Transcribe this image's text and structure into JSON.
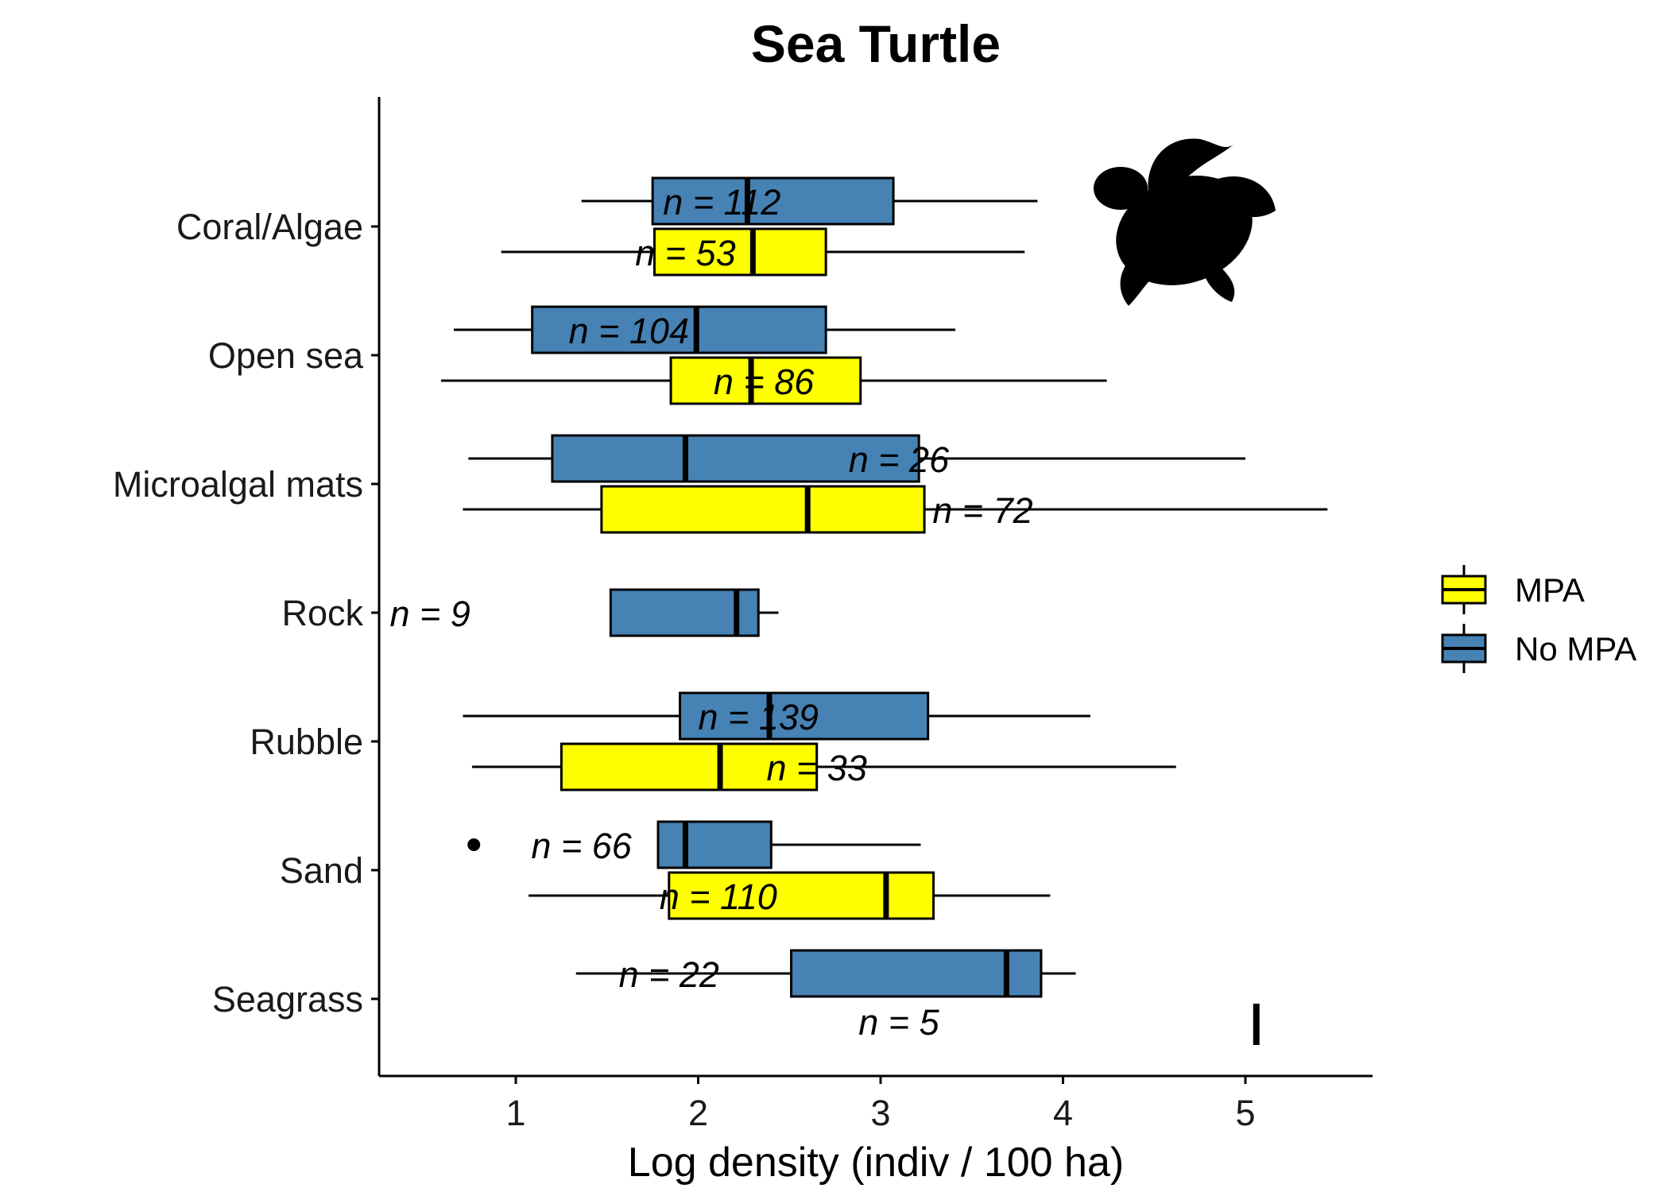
{
  "chart_data": {
    "type": "boxplot",
    "title": "Sea Turtle",
    "xlabel": "Log density (indiv / 100 ha)",
    "ylabel": "",
    "xlim": [
      0.25,
      5.7
    ],
    "xticks": [
      1,
      2,
      3,
      4,
      5
    ],
    "categories": [
      "Coral/Algae",
      "Open sea",
      "Microalgal mats",
      "Rock",
      "Rubble",
      "Sand",
      "Seagrass"
    ],
    "legend": {
      "placement": "right",
      "entries": [
        {
          "name": "MPA",
          "color": "#ffff00"
        },
        {
          "name": "No MPA",
          "color": "#4682b4"
        }
      ]
    },
    "series": [
      {
        "name": "No MPA",
        "color": "#4682b4",
        "boxes": [
          {
            "category": "Coral/Algae",
            "min": 1.36,
            "q1": 1.75,
            "median": 2.27,
            "q3": 3.07,
            "max": 3.86,
            "n_label": "n = 112"
          },
          {
            "category": "Open sea",
            "min": 0.66,
            "q1": 1.09,
            "median": 1.99,
            "q3": 2.7,
            "max": 3.41,
            "n_label": "n = 104"
          },
          {
            "category": "Microalgal mats",
            "min": 0.74,
            "q1": 1.2,
            "median": 1.93,
            "q3": 3.21,
            "max": 5.0,
            "n_label": "n = 26"
          },
          {
            "category": "Rock",
            "min": 1.52,
            "q1": 1.52,
            "median": 2.21,
            "q3": 2.33,
            "max": 2.44,
            "n_label": "n = 9"
          },
          {
            "category": "Rubble",
            "min": 0.71,
            "q1": 1.9,
            "median": 2.39,
            "q3": 3.26,
            "max": 4.15,
            "n_label": "n = 139"
          },
          {
            "category": "Sand",
            "min": 1.78,
            "q1": 1.78,
            "median": 1.93,
            "q3": 2.4,
            "max": 3.22,
            "outliers": [
              0.77
            ],
            "n_label": "n = 66"
          },
          {
            "category": "Seagrass",
            "min": 1.33,
            "q1": 2.51,
            "median": 3.69,
            "q3": 3.88,
            "max": 4.07,
            "n_label": "n = 22"
          }
        ]
      },
      {
        "name": "MPA",
        "color": "#ffff00",
        "boxes": [
          {
            "category": "Coral/Algae",
            "min": 0.92,
            "q1": 1.76,
            "median": 2.3,
            "q3": 2.7,
            "max": 3.79,
            "n_label": "n = 53"
          },
          {
            "category": "Open sea",
            "min": 0.59,
            "q1": 1.85,
            "median": 2.29,
            "q3": 2.89,
            "max": 4.24,
            "n_label": "n = 86"
          },
          {
            "category": "Microalgal mats",
            "min": 0.71,
            "q1": 1.47,
            "median": 2.6,
            "q3": 3.24,
            "max": 5.45,
            "n_label": "n = 72"
          },
          {
            "category": "Rubble",
            "min": 0.76,
            "q1": 1.25,
            "median": 2.12,
            "q3": 2.65,
            "max": 4.62,
            "n_label": "n = 33"
          },
          {
            "category": "Sand",
            "min": 1.07,
            "q1": 1.84,
            "median": 3.03,
            "q3": 3.29,
            "max": 3.93,
            "n_label": "n = 110"
          },
          {
            "category": "Seagrass",
            "min": 5.06,
            "q1": 5.06,
            "median": 5.06,
            "q3": 5.06,
            "max": 5.06,
            "n_label": "n = 5"
          }
        ]
      }
    ]
  }
}
